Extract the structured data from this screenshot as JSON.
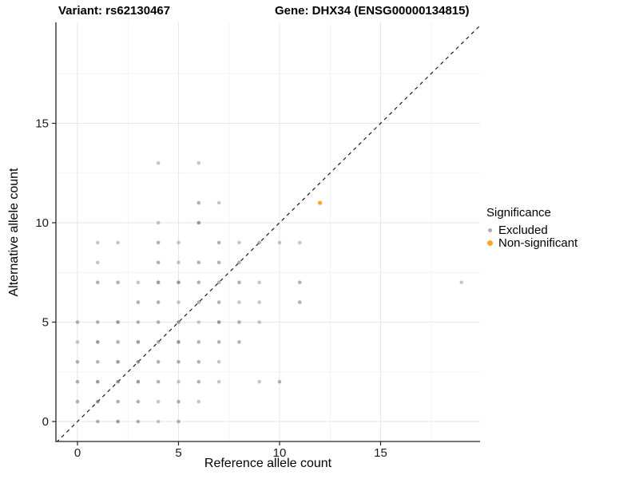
{
  "header": {
    "variant_title": "Variant: rs62130467",
    "gene_title": "Gene: DHX34 (ENSG00000134815)"
  },
  "chart_data": {
    "type": "scatter",
    "xlabel": "Reference allele count",
    "ylabel": "Alternative allele count",
    "x_ticks": [
      0,
      5,
      10,
      15
    ],
    "y_ticks": [
      0,
      5,
      10,
      15
    ],
    "x_minor_ticks": [
      2.5,
      7.5,
      12.5,
      17.5
    ],
    "y_minor_ticks": [
      2.5,
      7.5,
      12.5,
      17.5
    ],
    "xlim": [
      -1.05,
      19.95
    ],
    "ylim": [
      -1.0,
      20.1
    ],
    "grid": "on",
    "identity_line": {
      "style": "dashed",
      "slope": 1,
      "intercept": 0,
      "color": "#111111"
    },
    "legend": {
      "title": "Significance",
      "position": "right",
      "items": [
        {
          "label": "Excluded",
          "color": "#ABABAB"
        },
        {
          "label": "Non-significant",
          "color": "#FFA62B"
        }
      ]
    },
    "series": [
      {
        "name": "Excluded",
        "color": "#787878",
        "note": "third value = overplot darkness level 1(light)/2(medium)/3(dark)",
        "points": [
          [
            1,
            0,
            2
          ],
          [
            2,
            0,
            3
          ],
          [
            3,
            0,
            2
          ],
          [
            4,
            0,
            1
          ],
          [
            5,
            0,
            2
          ],
          [
            0,
            1,
            2
          ],
          [
            1,
            1,
            3
          ],
          [
            2,
            1,
            2
          ],
          [
            3,
            1,
            2
          ],
          [
            4,
            1,
            1
          ],
          [
            5,
            1,
            2
          ],
          [
            6,
            1,
            1
          ],
          [
            0,
            2,
            2
          ],
          [
            1,
            2,
            3
          ],
          [
            2,
            2,
            3
          ],
          [
            3,
            2,
            3
          ],
          [
            4,
            2,
            2
          ],
          [
            5,
            2,
            1
          ],
          [
            6,
            2,
            2
          ],
          [
            7,
            2,
            1
          ],
          [
            9,
            2,
            1
          ],
          [
            10,
            2,
            2
          ],
          [
            0,
            3,
            2
          ],
          [
            1,
            3,
            2
          ],
          [
            2,
            3,
            3
          ],
          [
            3,
            3,
            3
          ],
          [
            4,
            3,
            2
          ],
          [
            5,
            3,
            2
          ],
          [
            6,
            3,
            2
          ],
          [
            7,
            3,
            1
          ],
          [
            0,
            4,
            1
          ],
          [
            1,
            4,
            3
          ],
          [
            2,
            4,
            2
          ],
          [
            3,
            4,
            3
          ],
          [
            4,
            4,
            2
          ],
          [
            5,
            4,
            3
          ],
          [
            6,
            4,
            2
          ],
          [
            7,
            4,
            2
          ],
          [
            8,
            4,
            2
          ],
          [
            0,
            5,
            2
          ],
          [
            1,
            5,
            2
          ],
          [
            2,
            5,
            3
          ],
          [
            3,
            5,
            2
          ],
          [
            4,
            5,
            2
          ],
          [
            5,
            5,
            3
          ],
          [
            6,
            5,
            1
          ],
          [
            7,
            5,
            3
          ],
          [
            8,
            5,
            2
          ],
          [
            9,
            5,
            1
          ],
          [
            3,
            6,
            2
          ],
          [
            4,
            6,
            2
          ],
          [
            5,
            6,
            1
          ],
          [
            6,
            6,
            2
          ],
          [
            7,
            6,
            2
          ],
          [
            8,
            6,
            1
          ],
          [
            9,
            6,
            1
          ],
          [
            11,
            6,
            2
          ],
          [
            1,
            7,
            2
          ],
          [
            2,
            7,
            2
          ],
          [
            3,
            7,
            1
          ],
          [
            4,
            7,
            3
          ],
          [
            5,
            7,
            3
          ],
          [
            6,
            7,
            2
          ],
          [
            7,
            7,
            2
          ],
          [
            8,
            7,
            2
          ],
          [
            9,
            7,
            1
          ],
          [
            11,
            7,
            2
          ],
          [
            19,
            7,
            1
          ],
          [
            1,
            8,
            1
          ],
          [
            4,
            8,
            2
          ],
          [
            5,
            8,
            1
          ],
          [
            6,
            8,
            2
          ],
          [
            7,
            8,
            2
          ],
          [
            8,
            8,
            2
          ],
          [
            1,
            9,
            1
          ],
          [
            2,
            9,
            1
          ],
          [
            4,
            9,
            2
          ],
          [
            5,
            9,
            1
          ],
          [
            7,
            9,
            2
          ],
          [
            8,
            9,
            1
          ],
          [
            9,
            9,
            2
          ],
          [
            10,
            9,
            1
          ],
          [
            11,
            9,
            1
          ],
          [
            4,
            10,
            1
          ],
          [
            6,
            10,
            3
          ],
          [
            6,
            11,
            2
          ],
          [
            7,
            11,
            1
          ],
          [
            4,
            13,
            1
          ],
          [
            6,
            13,
            1
          ]
        ]
      },
      {
        "name": "Non-significant",
        "color": "#FFA62B",
        "points": [
          [
            12,
            11,
            3
          ]
        ]
      }
    ]
  },
  "style_colors": {
    "grid_major": "#E6E6E6",
    "grid_minor": "#F2F2F2",
    "axis_line": "#222222",
    "tick_label": "#1A1A1A"
  }
}
